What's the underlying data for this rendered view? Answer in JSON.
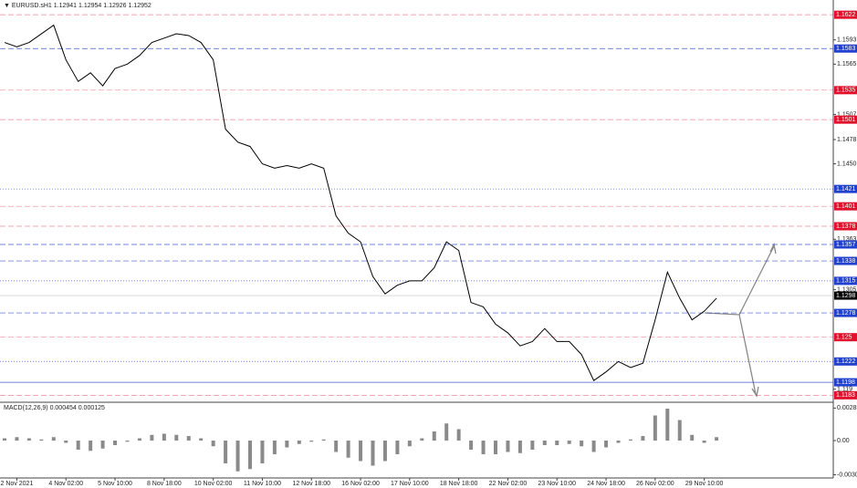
{
  "chart_data": [
    {
      "type": "line",
      "title": "▼ EURUSD.sH1  1.12941 1.12954 1.12926 1.12952",
      "categories": [
        null,
        "2 Nov 2021",
        null,
        null,
        null,
        "4 Nov 02:00",
        null,
        null,
        null,
        "5 Nov 10:00",
        null,
        null,
        null,
        "8 Nov 18:00",
        null,
        null,
        null,
        "10 Nov 02:00",
        null,
        null,
        null,
        "11 Nov 10:00",
        null,
        null,
        null,
        "12 Nov 18:00",
        null,
        null,
        null,
        "16 Nov 02:00",
        null,
        null,
        null,
        "17 Nov 10:00",
        null,
        null,
        null,
        "18 Nov 18:00",
        null,
        null,
        null,
        "22 Nov 02:00",
        null,
        null,
        null,
        "23 Nov 10:00",
        null,
        null,
        null,
        "24 Nov 18:00",
        null,
        null,
        null,
        "26 Nov 02:00",
        null,
        null,
        null,
        "29 Nov 10:00",
        null
      ],
      "values": [
        1.159,
        1.1585,
        1.159,
        1.16,
        1.161,
        1.157,
        1.1545,
        1.1555,
        1.154,
        1.156,
        1.1565,
        1.1575,
        1.159,
        1.1595,
        1.16,
        1.1598,
        1.159,
        1.157,
        1.149,
        1.1475,
        1.147,
        1.145,
        1.1445,
        1.1448,
        1.1445,
        1.145,
        1.1445,
        1.139,
        1.137,
        1.136,
        1.132,
        1.13,
        1.131,
        1.1315,
        1.1315,
        1.133,
        1.136,
        1.135,
        1.129,
        1.1285,
        1.1265,
        1.1255,
        1.124,
        1.1245,
        1.126,
        1.1245,
        1.1245,
        1.123,
        1.12,
        1.121,
        1.1222,
        1.1215,
        1.122,
        1.127,
        1.1325,
        1.1295,
        1.127,
        1.128,
        1.1295
      ],
      "color": "#000000",
      "ylim": [
        1.1176,
        1.1639
      ],
      "yticks": [
        1.1593,
        1.1565,
        1.1507,
        1.1478,
        {
          "value": 1.145,
          "label": "1.1450"
        },
        1.1363,
        1.1305,
        1.119
      ],
      "levels": [
        {
          "value": 1.1622,
          "color": "#e3102c",
          "style": "dashed"
        },
        {
          "value": 1.1583,
          "color": "#2040d0",
          "style": "dashed"
        },
        {
          "value": 1.1535,
          "color": "#e3102c",
          "style": "dashed"
        },
        {
          "value": 1.1501,
          "color": "#e3102c",
          "style": "dashed"
        },
        {
          "value": 1.1421,
          "color": "#2040d0",
          "style": "dotted"
        },
        {
          "value": 1.1401,
          "color": "#e3102c",
          "style": "dashed"
        },
        {
          "value": 1.1378,
          "color": "#e3102c",
          "style": "dashed"
        },
        {
          "value": 1.1357,
          "color": "#2040d0",
          "style": "dashed"
        },
        {
          "value": 1.1338,
          "color": "#2040d0",
          "style": "dashed"
        },
        {
          "value": 1.1315,
          "color": "#2040d0",
          "style": "dotted"
        },
        {
          "value": 1.1298,
          "color": "#000000",
          "style": "current"
        },
        {
          "value": 1.1278,
          "color": "#2040d0",
          "style": "dashed"
        },
        {
          "value": 1.125,
          "color": "#e3102c",
          "style": "dashed"
        },
        {
          "value": 1.1222,
          "color": "#2040d0",
          "style": "dotted"
        },
        {
          "value": 1.1198,
          "color": "#2040d0",
          "style": "solid"
        },
        {
          "value": 1.1183,
          "color": "#e3102c",
          "style": "dashed"
        }
      ]
    },
    {
      "type": "bar",
      "title": "MACD(12,26,9) 0.000454 0.000125",
      "values": [
        0.0002,
        0.0003,
        0.0002,
        0.0001,
        0.0003,
        -0.0002,
        -0.0008,
        -0.0009,
        -0.0007,
        -0.0004,
        -0.0001,
        0.0002,
        0.0005,
        0.0006,
        0.0005,
        0.0004,
        0.0002,
        -0.0005,
        -0.002,
        -0.0027,
        -0.0025,
        -0.002,
        -0.0012,
        -0.0006,
        -0.0003,
        -0.0001,
        0.0001,
        -0.001,
        -0.0015,
        -0.0018,
        -0.0022,
        -0.0018,
        -0.0012,
        -0.0005,
        0.0002,
        0.0008,
        0.0015,
        0.001,
        -0.0008,
        -0.0012,
        -0.0012,
        -0.001,
        -0.0011,
        -0.0008,
        -0.0004,
        -0.0004,
        -0.0003,
        -0.0005,
        -0.001,
        -0.0006,
        -0.0002,
        0.0001,
        0.0004,
        0.0022,
        0.0028,
        0.0018,
        0.0005,
        -0.0002,
        0.0003
      ],
      "color": "#8a8a8a",
      "ylim": [
        -0.0032,
        0.0032
      ],
      "yticks": [
        0.00285,
        {
          "value": 0,
          "label": "0.00"
        },
        {
          "value": -0.003,
          "label": "-0.0030"
        }
      ]
    }
  ]
}
